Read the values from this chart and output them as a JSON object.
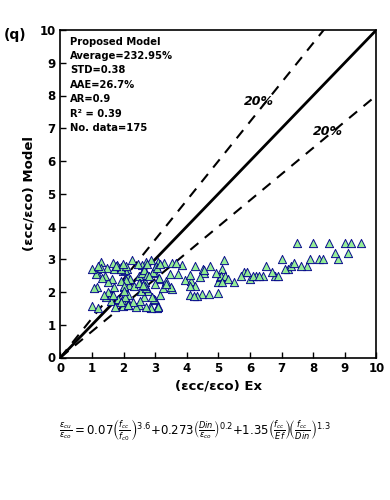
{
  "xlabel": "(εcc/εco) Ex",
  "ylabel": "(εcc/εco) Model",
  "xlim": [
    0,
    10
  ],
  "ylim": [
    0,
    10
  ],
  "xticks": [
    0,
    1,
    2,
    3,
    4,
    5,
    6,
    7,
    8,
    9,
    10
  ],
  "yticks": [
    0,
    1,
    2,
    3,
    4,
    5,
    6,
    7,
    8,
    9,
    10
  ],
  "annotation_lines": [
    "Proposed Model",
    "Average=232.95%",
    "STD=0.38",
    "AAE=26.7%",
    "AR=0.9",
    "R² = 0.39",
    "No. data=175"
  ],
  "label_20pct_upper": "20%",
  "label_20pct_lower": "20%",
  "marker_face_color": "#90EE90",
  "marker_edge_color": "#00008B",
  "panel_label": "(q)"
}
